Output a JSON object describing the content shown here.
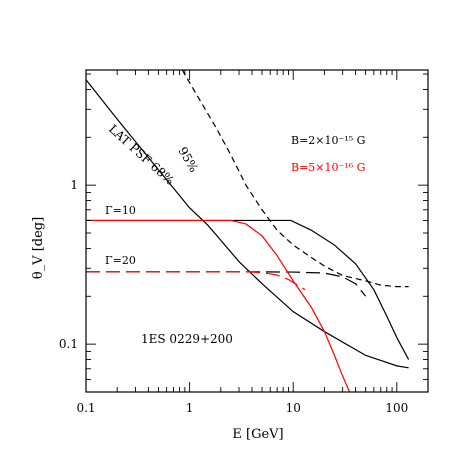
{
  "chart_data": {
    "type": "line",
    "xlabel": "E [GeV]",
    "ylabel": "θ_V [deg]",
    "xscale": "log",
    "yscale": "log",
    "xlim": [
      0.1,
      200
    ],
    "ylim": [
      0.05,
      5.3
    ],
    "x_ticks": [
      {
        "value": 0.1,
        "label": "0.1"
      },
      {
        "value": 1,
        "label": "1"
      },
      {
        "value": 10,
        "label": "10"
      },
      {
        "value": 100,
        "label": "100"
      }
    ],
    "y_ticks": [
      {
        "value": 0.1,
        "label": "0.1"
      },
      {
        "value": 1,
        "label": "1"
      }
    ],
    "grid": false,
    "legend": [
      {
        "text": "B=2×10⁻¹⁵ G",
        "color": "#000000"
      },
      {
        "text": "B=5×10⁻¹⁶ G",
        "color": "#ff0000"
      }
    ],
    "annotations": [
      {
        "text": "LAT PSF 68%",
        "x": 0.22,
        "y": 1.6
      },
      {
        "text": "95%",
        "x": 1.1,
        "y": 1.55
      },
      {
        "text": "Γ=10",
        "x": 0.13,
        "y": 0.62
      },
      {
        "text": "Γ=20",
        "x": 0.13,
        "y": 0.29
      },
      {
        "text": "1ES 0229+200",
        "x": 0.5,
        "y": 0.12
      }
    ],
    "series": [
      {
        "color": "#000000",
        "dash": "solid",
        "x": [
          0.1,
          0.2,
          0.5,
          1,
          1.5,
          2,
          3,
          5,
          10,
          20,
          50,
          100,
          130
        ],
        "y": [
          4.6,
          2.6,
          1.25,
          0.72,
          0.56,
          0.45,
          0.33,
          0.24,
          0.16,
          0.12,
          0.085,
          0.073,
          0.071
        ]
      },
      {
        "color": "#000000",
        "dash": "dashed",
        "x": [
          0.85,
          1.2,
          1.8,
          2.5,
          3.5,
          5,
          7,
          10,
          15,
          20,
          30,
          50,
          70,
          100,
          130
        ],
        "y": [
          5.3,
          3.6,
          2.3,
          1.55,
          1.0,
          0.7,
          0.52,
          0.42,
          0.35,
          0.31,
          0.27,
          0.25,
          0.235,
          0.23,
          0.23
        ]
      },
      {
        "color": "#000000",
        "dash": "solid",
        "x": [
          0.1,
          2,
          5,
          9.5,
          15,
          25,
          40,
          60,
          80,
          100,
          130
        ],
        "y": [
          0.6,
          0.6,
          0.6,
          0.6,
          0.52,
          0.42,
          0.32,
          0.22,
          0.15,
          0.11,
          0.08
        ]
      },
      {
        "color": "#000000",
        "dash": "long-dash",
        "x": [
          0.1,
          5,
          10,
          20,
          30,
          40,
          50
        ],
        "y": [
          0.285,
          0.285,
          0.284,
          0.28,
          0.265,
          0.24,
          0.2
        ]
      },
      {
        "color": "#ff0000",
        "dash": "solid",
        "x": [
          0.1,
          2.5,
          3.5,
          5,
          7,
          10,
          15,
          20,
          25,
          30,
          35
        ],
        "y": [
          0.6,
          0.6,
          0.57,
          0.48,
          0.36,
          0.25,
          0.17,
          0.12,
          0.085,
          0.063,
          0.05
        ]
      },
      {
        "color": "#ff0000",
        "dash": "long-dash",
        "x": [
          0.1,
          3.5,
          5,
          7,
          9,
          11,
          13
        ],
        "y": [
          0.285,
          0.285,
          0.282,
          0.272,
          0.255,
          0.235,
          0.22
        ]
      }
    ]
  }
}
